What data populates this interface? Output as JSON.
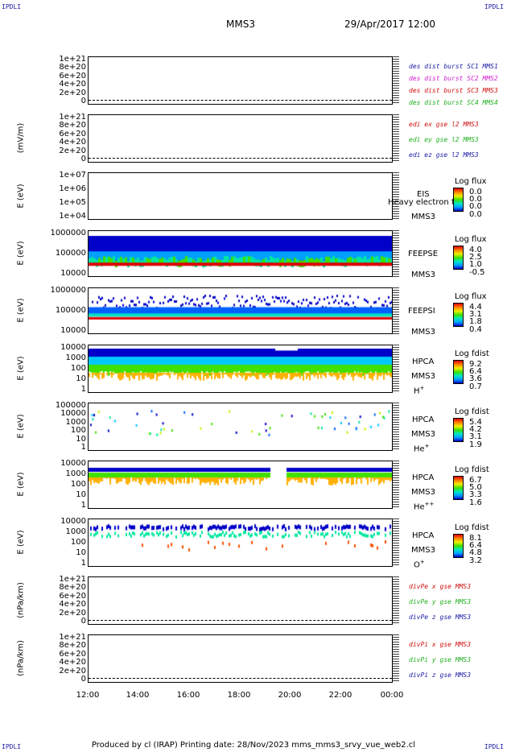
{
  "corners": {
    "tl": "IPDLI",
    "tr": "IPDLI",
    "bl": "IPDLI",
    "br": "IPDLI"
  },
  "header": {
    "spacecraft": "MMS3",
    "datetime": "29/Apr/2017 12:00"
  },
  "footer": "Produced by cl (IRAP)    Printing date: 28/Nov/2023    mms_mms3_srvy_vue_web2.cl",
  "chart_data": [
    {
      "type": "line",
      "ylabel": "",
      "yticks": [
        "1e+21",
        "8e+20",
        "6e+20",
        "4e+20",
        "2e+20",
        "0"
      ],
      "series": [
        {
          "name": "des dist burst SC1 MMS1",
          "color": "#1a1aa6"
        },
        {
          "name": "des dist burst SC2 MMS2",
          "color": "#d020d0"
        },
        {
          "name": "des dist burst SC3 MMS3",
          "color": "#d01010"
        },
        {
          "name": "des dist burst SC4 MMS4",
          "color": "#20b020"
        }
      ]
    },
    {
      "type": "line",
      "ylabel": "(mV/m)",
      "yticks": [
        "1e+21",
        "8e+20",
        "6e+20",
        "4e+20",
        "2e+20",
        "0"
      ],
      "series": [
        {
          "name": "edi ex gse l2 MMS3",
          "color": "#d01010"
        },
        {
          "name": "edi ey gse l2 MMS3",
          "color": "#20b020"
        },
        {
          "name": "edi ez gse l2 MMS3",
          "color": "#1a1aa6"
        }
      ]
    },
    {
      "type": "heatmap",
      "ylabel": "E (eV)",
      "yticks": [
        "1e+07",
        "1e+06",
        "1e+05",
        "1e+04"
      ],
      "instrument": "EIS",
      "sc": "MMS3",
      "note": "Heavy electron to",
      "cbtitle": "Log flux",
      "cbticks": [
        "0.0",
        "0.0",
        "0.0",
        "0.0"
      ]
    },
    {
      "type": "heatmap",
      "ylabel": "E (eV)",
      "yticks": [
        "1000000",
        "100000",
        "10000"
      ],
      "instrument": "FEEPSE",
      "sc": "MMS3",
      "cbtitle": "Log flux",
      "cbticks": [
        "4.0",
        "2.5",
        "1.0",
        "-0.5"
      ]
    },
    {
      "type": "heatmap",
      "ylabel": "E (eV)",
      "yticks": [
        "1000000",
        "100000",
        "10000"
      ],
      "instrument": "FEEPSI",
      "sc": "MMS3",
      "cbtitle": "Log flux",
      "cbticks": [
        "4.4",
        "3.1",
        "1.8",
        "0.4"
      ]
    },
    {
      "type": "heatmap",
      "ylabel": "E (eV)",
      "yticks": [
        "10000",
        "1000",
        "100",
        "10",
        "1"
      ],
      "instrument": "HPCA",
      "sc": "MMS3",
      "species": "H",
      "species_sup": "+",
      "cbtitle": "Log fdist",
      "cbticks": [
        "9.2",
        "6.4",
        "3.6",
        "0.7"
      ]
    },
    {
      "type": "heatmap",
      "ylabel": "E (eV)",
      "yticks": [
        "100000",
        "10000",
        "1000",
        "100",
        "10",
        "1"
      ],
      "instrument": "HPCA",
      "sc": "MMS3",
      "species": "He",
      "species_sup": "+",
      "cbtitle": "Log fdist",
      "cbticks": [
        "5.4",
        "4.2",
        "3.1",
        "1.9"
      ]
    },
    {
      "type": "heatmap",
      "ylabel": "E (eV)",
      "yticks": [
        "10000",
        "1000",
        "100",
        "10",
        "1"
      ],
      "instrument": "HPCA",
      "sc": "MMS3",
      "species": "He",
      "species_sup": "++",
      "cbtitle": "Log fdist",
      "cbticks": [
        "6.7",
        "5.0",
        "3.3",
        "1.6"
      ]
    },
    {
      "type": "heatmap",
      "ylabel": "E (eV)",
      "yticks": [
        "10000",
        "1000",
        "100",
        "10",
        "1"
      ],
      "instrument": "HPCA",
      "sc": "MMS3",
      "species": "O",
      "species_sup": "+",
      "cbtitle": "Log fdist",
      "cbticks": [
        "8.1",
        "6.4",
        "4.8",
        "3.2"
      ]
    },
    {
      "type": "line",
      "ylabel": "(nPa/km)",
      "yticks": [
        "1e+21",
        "8e+20",
        "6e+20",
        "4e+20",
        "2e+20",
        "0"
      ],
      "series": [
        {
          "name": "divPe x gse MMS3",
          "color": "#d01010"
        },
        {
          "name": "divPe y gse MMS3",
          "color": "#20b020"
        },
        {
          "name": "divPe z gse MMS3",
          "color": "#1a1aa6"
        }
      ]
    },
    {
      "type": "line",
      "ylabel": "(nPa/km)",
      "yticks": [
        "1e+21",
        "8e+20",
        "6e+20",
        "4e+20",
        "2e+20",
        "0"
      ],
      "series": [
        {
          "name": "divPi x gse MMS3",
          "color": "#d01010"
        },
        {
          "name": "divPi y gse MMS3",
          "color": "#20b020"
        },
        {
          "name": "divPi z gse MMS3",
          "color": "#1a1aa6"
        }
      ]
    }
  ],
  "xticks": [
    "12:00",
    "14:00",
    "16:00",
    "18:00",
    "20:00",
    "22:00",
    "00:00"
  ]
}
